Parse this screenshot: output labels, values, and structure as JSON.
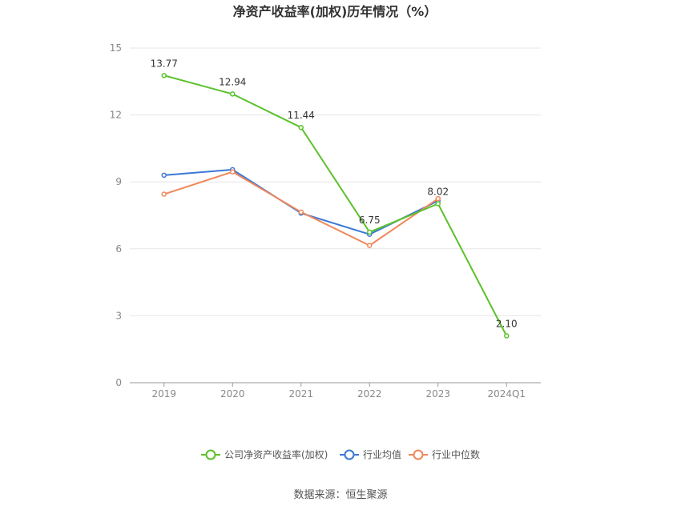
{
  "chart_data": {
    "type": "line",
    "title": "净资产收益率(加权)历年情况（%）",
    "categories": [
      "2019",
      "2020",
      "2021",
      "2022",
      "2023",
      "2024Q1"
    ],
    "yticks": [
      "0",
      "3",
      "6",
      "9",
      "12",
      "15"
    ],
    "ylim": [
      0,
      15
    ],
    "grid": true,
    "legend_position": "bottom",
    "series": [
      {
        "name": "公司净资产收益率(加权)",
        "color": "#5cc12c",
        "values": [
          13.77,
          12.94,
          11.44,
          6.75,
          8.02,
          2.1
        ],
        "labels": [
          "13.77",
          "12.94",
          "11.44",
          "6.75",
          "8.02",
          "2.10"
        ]
      },
      {
        "name": "行业均值",
        "color": "#3a78d6",
        "values": [
          9.3,
          9.55,
          7.6,
          6.65,
          8.15,
          null
        ]
      },
      {
        "name": "行业中位数",
        "color": "#f0875a",
        "values": [
          8.45,
          9.45,
          7.65,
          6.15,
          8.25,
          null
        ]
      }
    ]
  },
  "source": "数据来源：恒生聚源"
}
